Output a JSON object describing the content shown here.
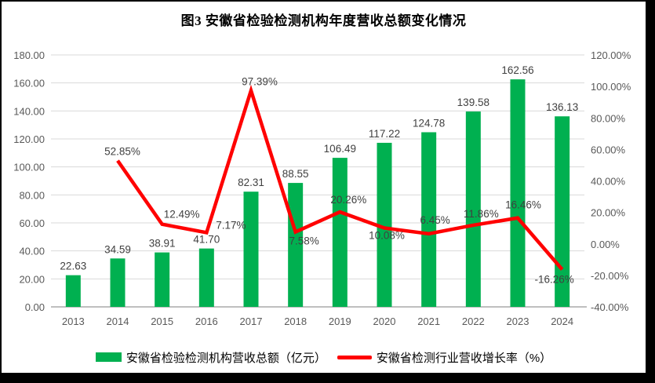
{
  "title": "图3 安徽省检验检测机构年度营收总额变化情况",
  "chart_data": {
    "type": "combo-bar-line",
    "categories": [
      "2013",
      "2014",
      "2015",
      "2016",
      "2017",
      "2018",
      "2019",
      "2020",
      "2021",
      "2022",
      "2023",
      "2024"
    ],
    "series": [
      {
        "name": "安徽省检验检测机构营收总额（亿元）",
        "type": "bar",
        "axis": "left",
        "color": "#00B050",
        "values": [
          22.63,
          34.59,
          38.91,
          41.7,
          82.31,
          88.55,
          106.49,
          117.22,
          124.78,
          139.58,
          162.56,
          136.13
        ],
        "labels": [
          "22.63",
          "34.59",
          "38.91",
          "41.70",
          "82.31",
          "88.55",
          "106.49",
          "117.22",
          "124.78",
          "139.58",
          "162.56",
          "136.13"
        ]
      },
      {
        "name": "安徽省检测行业营收增长率（%）",
        "type": "line",
        "axis": "right",
        "color": "#FF0000",
        "values": [
          null,
          52.85,
          12.49,
          7.17,
          97.39,
          7.58,
          20.26,
          10.08,
          6.45,
          11.86,
          16.46,
          -16.26
        ],
        "labels": [
          null,
          "52.85%",
          "12.49%",
          "7.17%",
          "97.39%",
          "7.58%",
          "20.26%",
          "10.08%",
          "6.45%",
          "11.86%",
          "16.46%",
          "-16.26%"
        ],
        "label_offsets": [
          null,
          [
            6,
            -7
          ],
          [
            25,
            -8
          ],
          [
            31,
            -5
          ],
          [
            11,
            -7
          ],
          [
            11,
            16
          ],
          [
            11,
            -11
          ],
          [
            3,
            14
          ],
          [
            8,
            -13
          ],
          [
            10,
            -10
          ],
          [
            7,
            -12
          ],
          [
            -10,
            17
          ]
        ]
      }
    ],
    "left_axis": {
      "min": 0,
      "max": 180,
      "step": 20,
      "ticks": [
        "0.00",
        "20.00",
        "40.00",
        "60.00",
        "80.00",
        "100.00",
        "120.00",
        "140.00",
        "160.00",
        "180.00"
      ]
    },
    "right_axis": {
      "min": -40,
      "max": 120,
      "step": 20,
      "ticks": [
        "-40.00%",
        "-20.00%",
        "0.00%",
        "20.00%",
        "40.00%",
        "60.00%",
        "80.00%",
        "100.00%",
        "120.00%"
      ]
    },
    "grid": true,
    "legend_position": "bottom"
  },
  "colors": {
    "bar": "#00B050",
    "line": "#FF0000",
    "grid": "#D9D9D9",
    "axis_line": "#BFBFBF",
    "tick_text": "#595959",
    "data_label": "#404040",
    "background": "#FFFFFF",
    "frame_border": "#000000"
  }
}
